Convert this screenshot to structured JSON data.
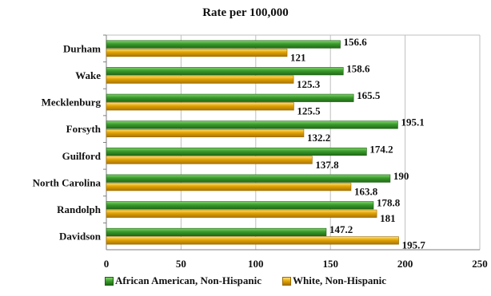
{
  "chart_data": {
    "type": "bar",
    "orientation": "horizontal",
    "title": "Rate per 100,000",
    "xlabel": "",
    "ylabel": "",
    "categories": [
      "Durham",
      "Wake",
      "Mecklenburg",
      "Forsyth",
      "Guilford",
      "North Carolina",
      "Randolph",
      "Davidson"
    ],
    "series": [
      {
        "name": "African American, Non-Hispanic",
        "color": "#3a9a2c",
        "values": [
          156.6,
          158.6,
          165.5,
          195.1,
          174.2,
          190,
          178.8,
          147.2
        ],
        "labels": [
          "156.6",
          "158.6",
          "165.5",
          "195.1",
          "174.2",
          "190",
          "178.8",
          "147.2"
        ]
      },
      {
        "name": "White, Non-Hispanic",
        "color": "#e0a100",
        "values": [
          121,
          125.3,
          125.5,
          132.2,
          137.8,
          163.8,
          181,
          195.7
        ],
        "labels": [
          "121",
          "125.3",
          "125.5",
          "132.2",
          "137.8",
          "163.8",
          "181",
          "195.7"
        ]
      }
    ],
    "xlim": [
      0,
      250
    ],
    "xticks": [
      0,
      50,
      100,
      150,
      200,
      250
    ],
    "xtick_labels": [
      "0",
      "50",
      "100",
      "150",
      "200",
      "250"
    ],
    "grid": true,
    "legend": "bottom"
  }
}
